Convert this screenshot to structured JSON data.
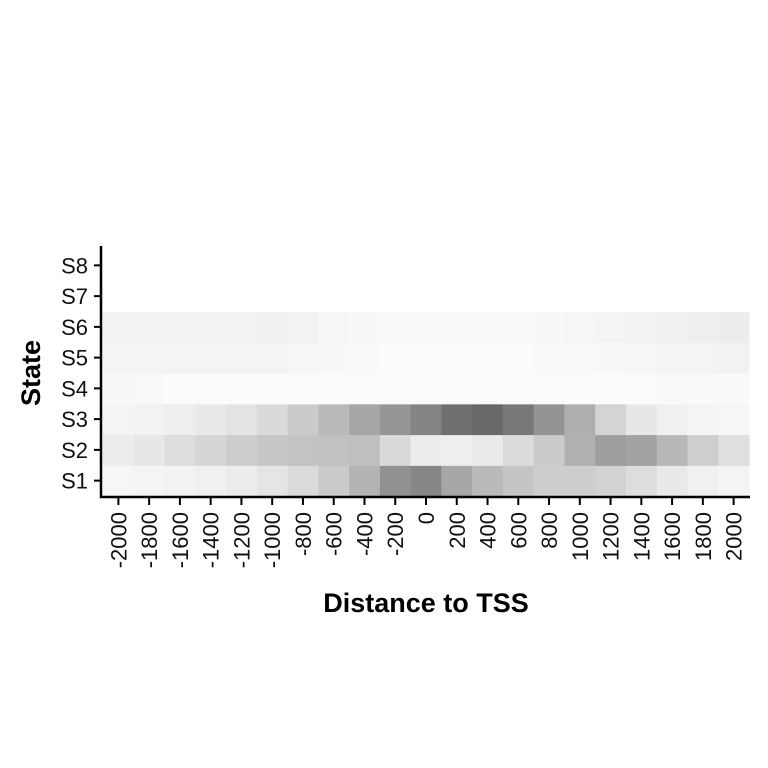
{
  "chart_data": {
    "type": "heatmap",
    "xlabel": "Distance to TSS",
    "ylabel": "State",
    "x": [
      "-2000",
      "-1800",
      "-1600",
      "-1400",
      "-1200",
      "-1000",
      "-800",
      "-600",
      "-400",
      "-200",
      "0",
      "200",
      "400",
      "600",
      "800",
      "1000",
      "1200",
      "1400",
      "1600",
      "1800",
      "2000"
    ],
    "y": [
      "S1",
      "S2",
      "S3",
      "S4",
      "S5",
      "S6",
      "S7",
      "S8"
    ],
    "value_range": [
      0,
      1
    ],
    "color_scale": {
      "low": "#ffffff",
      "high": "#444444"
    },
    "grid": false,
    "legend": "none",
    "values": [
      [
        0.05,
        0.06,
        0.07,
        0.08,
        0.1,
        0.14,
        0.19,
        0.28,
        0.4,
        0.59,
        0.64,
        0.47,
        0.37,
        0.31,
        0.27,
        0.27,
        0.24,
        0.18,
        0.12,
        0.08,
        0.06
      ],
      [
        0.1,
        0.13,
        0.18,
        0.22,
        0.27,
        0.3,
        0.32,
        0.33,
        0.34,
        0.2,
        0.1,
        0.09,
        0.11,
        0.19,
        0.28,
        0.42,
        0.52,
        0.5,
        0.38,
        0.26,
        0.17
      ],
      [
        0.06,
        0.07,
        0.09,
        0.12,
        0.15,
        0.2,
        0.28,
        0.37,
        0.47,
        0.56,
        0.66,
        0.77,
        0.8,
        0.72,
        0.57,
        0.43,
        0.23,
        0.13,
        0.08,
        0.06,
        0.05
      ],
      [
        0.04,
        0.03,
        0.02,
        0.02,
        0.02,
        0.02,
        0.02,
        0.02,
        0.02,
        0.02,
        0.02,
        0.02,
        0.02,
        0.02,
        0.02,
        0.02,
        0.02,
        0.02,
        0.03,
        0.03,
        0.03
      ],
      [
        0.06,
        0.06,
        0.06,
        0.06,
        0.06,
        0.06,
        0.05,
        0.04,
        0.03,
        0.02,
        0.02,
        0.02,
        0.02,
        0.02,
        0.03,
        0.03,
        0.04,
        0.05,
        0.06,
        0.06,
        0.07
      ],
      [
        0.07,
        0.07,
        0.07,
        0.07,
        0.07,
        0.08,
        0.07,
        0.05,
        0.04,
        0.03,
        0.03,
        0.03,
        0.03,
        0.03,
        0.04,
        0.05,
        0.06,
        0.07,
        0.08,
        0.09,
        0.1
      ],
      [
        0,
        0,
        0,
        0,
        0,
        0,
        0,
        0,
        0,
        0,
        0,
        0,
        0,
        0,
        0,
        0,
        0,
        0,
        0,
        0,
        0
      ],
      [
        0,
        0,
        0,
        0,
        0,
        0,
        0,
        0,
        0,
        0,
        0,
        0,
        0,
        0,
        0,
        0,
        0,
        0,
        0,
        0,
        0
      ]
    ]
  }
}
